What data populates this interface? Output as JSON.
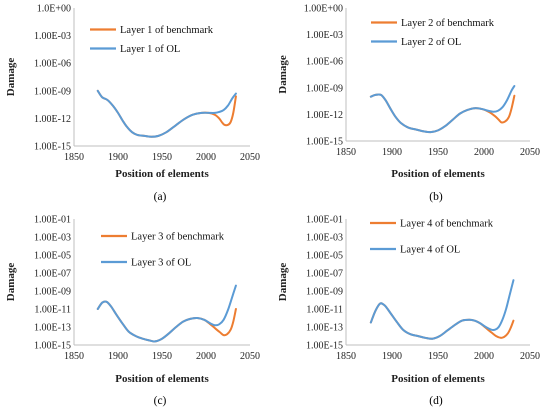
{
  "chart_data": [
    {
      "type": "line",
      "caption": "(a)",
      "xlabel": "Position of elements",
      "ylabel": "Damage",
      "yscale": "log",
      "xlim": [
        1850,
        2050
      ],
      "x_ticks": [
        1850,
        1900,
        1950,
        2000,
        2050
      ],
      "ylim_exp": [
        -15,
        0
      ],
      "y_ticks": [
        "1.00E-15",
        "1.00E-12",
        "1.00E-09",
        "1.00E-06",
        "1.00E-03",
        "1.0E+00"
      ],
      "legend_position": "top-right",
      "series": [
        {
          "name": "Layer 1 of benchmark",
          "color": "#ED7D31",
          "x": [
            1877,
            1882,
            1888,
            1894,
            1900,
            1905,
            1910,
            1916,
            1922,
            1930,
            1938,
            1946,
            1955,
            1965,
            1975,
            1985,
            1995,
            2003,
            2010,
            2015,
            2018,
            2021,
            2025,
            2028,
            2031,
            2034
          ],
          "y_exp": [
            -9,
            -9.7,
            -10,
            -10.6,
            -11.4,
            -12.2,
            -12.9,
            -13.5,
            -13.8,
            -13.9,
            -14,
            -13.9,
            -13.5,
            -12.8,
            -12.1,
            -11.6,
            -11.4,
            -11.4,
            -11.6,
            -12,
            -12.4,
            -12.7,
            -12.7,
            -12.4,
            -11.4,
            -9.6
          ]
        },
        {
          "name": "Layer 1 of OL",
          "color": "#5B9BD5",
          "x": [
            1877,
            1882,
            1888,
            1894,
            1900,
            1905,
            1910,
            1916,
            1922,
            1930,
            1938,
            1946,
            1955,
            1965,
            1975,
            1985,
            1995,
            2003,
            2010,
            2015,
            2020,
            2025,
            2030,
            2034
          ],
          "y_exp": [
            -9,
            -9.7,
            -10,
            -10.6,
            -11.4,
            -12.2,
            -12.9,
            -13.5,
            -13.8,
            -13.9,
            -14,
            -13.9,
            -13.5,
            -12.8,
            -12.1,
            -11.6,
            -11.4,
            -11.4,
            -11.4,
            -11.3,
            -11.1,
            -10.6,
            -9.8,
            -9.3
          ]
        }
      ]
    },
    {
      "type": "line",
      "caption": "(b)",
      "xlabel": "Position of elements",
      "ylabel": "Damage",
      "yscale": "log",
      "xlim": [
        1850,
        2050
      ],
      "x_ticks": [
        1850,
        1900,
        1950,
        2000,
        2050
      ],
      "ylim_exp": [
        -15,
        0
      ],
      "y_ticks": [
        "1.00E-15",
        "1.00E-12",
        "1.00E-09",
        "1.00E-06",
        "1.00E-03",
        "1.00E+00"
      ],
      "legend_position": "top-right",
      "series": [
        {
          "name": "Layer 2 of benchmark",
          "color": "#ED7D31",
          "x": [
            1877,
            1882,
            1888,
            1893,
            1898,
            1904,
            1910,
            1918,
            1926,
            1934,
            1942,
            1950,
            1958,
            1966,
            1974,
            1982,
            1990,
            1998,
            2005,
            2012,
            2016,
            2019,
            2023,
            2027,
            2030,
            2033
          ],
          "y_exp": [
            -10,
            -9.8,
            -9.8,
            -10.4,
            -11.3,
            -12.3,
            -13,
            -13.5,
            -13.7,
            -13.9,
            -14,
            -13.8,
            -13.3,
            -12.6,
            -11.9,
            -11.5,
            -11.3,
            -11.4,
            -11.7,
            -12.2,
            -12.6,
            -12.9,
            -12.8,
            -12.3,
            -11.3,
            -9.9
          ]
        },
        {
          "name": "Layer 2 of OL",
          "color": "#5B9BD5",
          "x": [
            1877,
            1882,
            1888,
            1893,
            1898,
            1904,
            1910,
            1918,
            1926,
            1934,
            1942,
            1950,
            1958,
            1966,
            1974,
            1982,
            1990,
            1998,
            2005,
            2010,
            2015,
            2020,
            2025,
            2030,
            2033
          ],
          "y_exp": [
            -10,
            -9.8,
            -9.8,
            -10.4,
            -11.3,
            -12.3,
            -13,
            -13.5,
            -13.7,
            -13.9,
            -14,
            -13.8,
            -13.3,
            -12.6,
            -11.9,
            -11.5,
            -11.3,
            -11.4,
            -11.6,
            -11.7,
            -11.6,
            -11.2,
            -10.4,
            -9.3,
            -8.8
          ]
        }
      ]
    },
    {
      "type": "line",
      "caption": "(c)",
      "xlabel": "Position of elements",
      "ylabel": "Damage",
      "yscale": "log",
      "xlim": [
        1850,
        2050
      ],
      "x_ticks": [
        1850,
        1900,
        1950,
        2000,
        2050
      ],
      "ylim_exp": [
        -15,
        -1
      ],
      "y_ticks": [
        "1.00E-15",
        "1.00E-13",
        "1.00E-11",
        "1.00E-09",
        "1.00E-07",
        "1.00E-05",
        "1.00E-03",
        "1.00E-01"
      ],
      "legend_position": "top-right",
      "series": [
        {
          "name": "Layer 3 of benchmark",
          "color": "#ED7D31",
          "x": [
            1877,
            1882,
            1887,
            1892,
            1898,
            1905,
            1912,
            1920,
            1928,
            1936,
            1942,
            1950,
            1958,
            1966,
            1974,
            1982,
            1990,
            1998,
            2005,
            2011,
            2016,
            2020,
            2024,
            2028,
            2031,
            2034
          ],
          "y_exp": [
            -11,
            -10.3,
            -10.2,
            -10.7,
            -11.6,
            -12.6,
            -13.5,
            -14,
            -14.3,
            -14.5,
            -14.6,
            -14.3,
            -13.7,
            -13,
            -12.4,
            -12.1,
            -12,
            -12.2,
            -12.7,
            -13.2,
            -13.6,
            -13.9,
            -13.8,
            -13.3,
            -12.4,
            -11
          ]
        },
        {
          "name": "Layer 3 of OL",
          "color": "#5B9BD5",
          "x": [
            1877,
            1882,
            1887,
            1892,
            1898,
            1905,
            1912,
            1920,
            1928,
            1936,
            1942,
            1950,
            1958,
            1966,
            1974,
            1982,
            1990,
            1998,
            2005,
            2010,
            2015,
            2020,
            2025,
            2030,
            2034
          ],
          "y_exp": [
            -11,
            -10.3,
            -10.2,
            -10.7,
            -11.6,
            -12.6,
            -13.5,
            -14,
            -14.3,
            -14.5,
            -14.6,
            -14.3,
            -13.7,
            -13,
            -12.4,
            -12.1,
            -12,
            -12.2,
            -12.6,
            -12.8,
            -12.7,
            -12.2,
            -11.1,
            -9.6,
            -8.4
          ]
        }
      ]
    },
    {
      "type": "line",
      "caption": "(d)",
      "xlabel": "Position of elements",
      "ylabel": "Damage",
      "yscale": "log",
      "xlim": [
        1850,
        2050
      ],
      "x_ticks": [
        1850,
        1900,
        1950,
        2000,
        2050
      ],
      "ylim_exp": [
        -15,
        -1
      ],
      "y_ticks": [
        "1.00E-15",
        "1.00E-13",
        "1.00E-11",
        "1.00E-09",
        "1.00E-07",
        "1.00E-05",
        "1.00E-03",
        "1.00E-01"
      ],
      "legend_position": "top-right",
      "series": [
        {
          "name": "Layer 4 of benchmark",
          "color": "#ED7D31",
          "x": [
            1877,
            1882,
            1887,
            1892,
            1898,
            1905,
            1912,
            1920,
            1928,
            1936,
            1944,
            1952,
            1960,
            1968,
            1976,
            1984,
            1990,
            1996,
            2002,
            2008,
            2013,
            2018,
            2022,
            2026,
            2029,
            2032
          ],
          "y_exp": [
            -12.5,
            -11.2,
            -10.4,
            -10.6,
            -11.4,
            -12.4,
            -13.3,
            -13.8,
            -14,
            -14.2,
            -14.3,
            -14,
            -13.4,
            -12.8,
            -12.3,
            -12.2,
            -12.3,
            -12.6,
            -13.1,
            -13.6,
            -14,
            -14.2,
            -14.1,
            -13.7,
            -13.1,
            -12.3
          ]
        },
        {
          "name": "Layer 4 of OL",
          "color": "#5B9BD5",
          "x": [
            1877,
            1882,
            1887,
            1892,
            1898,
            1905,
            1912,
            1920,
            1928,
            1936,
            1944,
            1952,
            1960,
            1968,
            1976,
            1984,
            1990,
            1996,
            2002,
            2008,
            2012,
            2016,
            2020,
            2024,
            2028,
            2032
          ],
          "y_exp": [
            -12.5,
            -11.2,
            -10.4,
            -10.6,
            -11.4,
            -12.4,
            -13.3,
            -13.8,
            -14,
            -14.2,
            -14.3,
            -14,
            -13.4,
            -12.8,
            -12.3,
            -12.2,
            -12.3,
            -12.6,
            -13,
            -13.3,
            -13.3,
            -13,
            -12.2,
            -11,
            -9.4,
            -7.8
          ]
        }
      ]
    }
  ]
}
